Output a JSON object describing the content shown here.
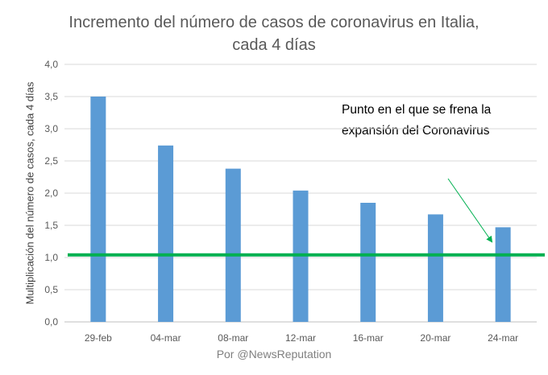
{
  "chart_data": {
    "type": "bar",
    "title_lines": [
      "Incremento del número de casos de coronavirus en Italia,",
      "cada 4 días"
    ],
    "ylabel": "Multiplicación del número de casos, cada 4 días",
    "xlabel": "Por @NewsReputation",
    "ylim": [
      0,
      4
    ],
    "yticks": [
      "0,0",
      "0,5",
      "1,0",
      "1,5",
      "2,0",
      "2,5",
      "3,0",
      "3,5",
      "4,0"
    ],
    "categories": [
      "29-feb",
      "04-mar",
      "08-mar",
      "12-mar",
      "16-mar",
      "20-mar",
      "24-mar"
    ],
    "values": [
      3.5,
      2.74,
      2.38,
      2.04,
      1.85,
      1.67,
      1.47
    ],
    "reference_line": {
      "value": 1.04,
      "color": "#00b050"
    },
    "annotation_lines": [
      "Punto en el que se frena la",
      "expansión del Coronavirus"
    ],
    "bar_color": "#5b9bd5",
    "arrow_color": "#00b050",
    "grid": true
  }
}
